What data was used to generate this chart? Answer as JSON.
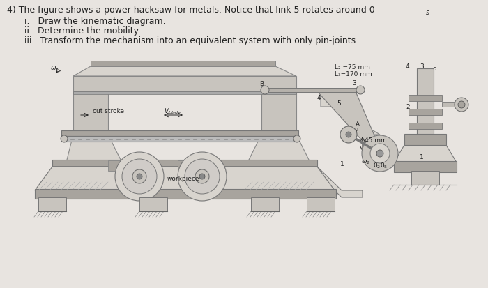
{
  "bg_color": "#e8e4e0",
  "title_line1": "4) The figure shows a power hacksaw for metals. Notice that link 5 rotates around 0",
  "title_sub": "s",
  "item_i": "i.   Draw the kinematic diagram.",
  "item_ii": "ii.  Determine the mobility.",
  "item_iii": "iii.  Transform the mechanism into an equivalent system with only pin-joints.",
  "label_L2": "L₂ =75 mm",
  "label_L3": "L₃=170 mm",
  "label_cut_stroke": "cut stroke",
  "label_vblade": "V",
  "label_blade": "blade",
  "label_workpiece": "workpiece",
  "font_size_title": 9.0,
  "font_size_labels": 6.5,
  "frame_color": "#c8c4be",
  "frame_dark": "#a8a49e",
  "frame_light": "#d8d4ce",
  "ground_hatch_color": "#888880",
  "link_color": "#b8b4ae",
  "text_color": "#222222"
}
